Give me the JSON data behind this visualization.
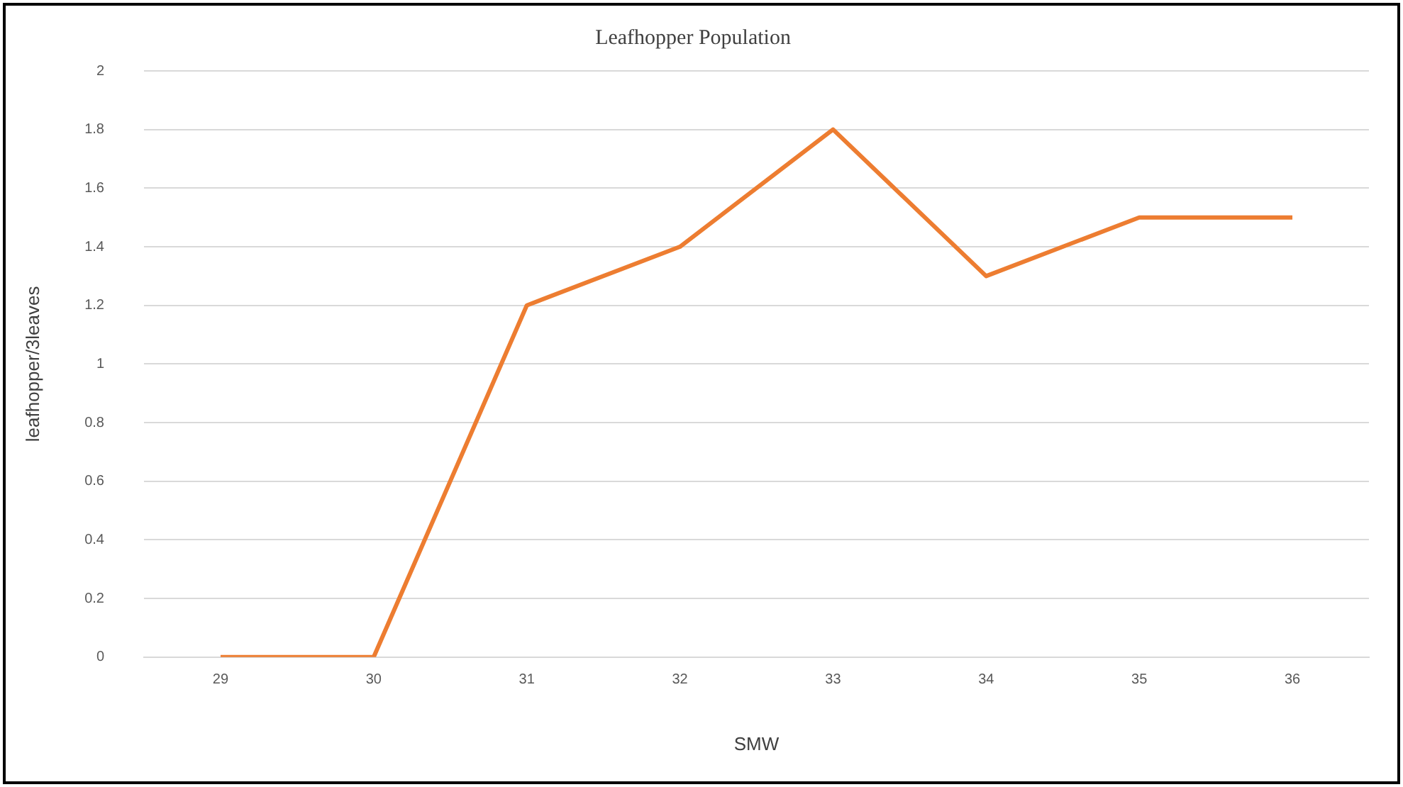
{
  "chart_data": {
    "type": "line",
    "title": "Leafhopper Population",
    "xlabel": "SMW",
    "ylabel": "leafhopper/3leaves",
    "categories": [
      "29",
      "30",
      "31",
      "32",
      "33",
      "34",
      "35",
      "36"
    ],
    "series": [
      {
        "color": "#ed7d31",
        "values": [
          0,
          0,
          1.2,
          1.4,
          1.8,
          1.3,
          1.5,
          1.5
        ]
      }
    ],
    "ylim": [
      0,
      2
    ],
    "yticks": [
      0,
      0.2,
      0.4,
      0.6,
      0.8,
      1,
      1.2,
      1.4,
      1.6,
      1.8,
      2
    ],
    "grid": "y",
    "legend": false,
    "marker": "none",
    "line_style": "solid"
  }
}
